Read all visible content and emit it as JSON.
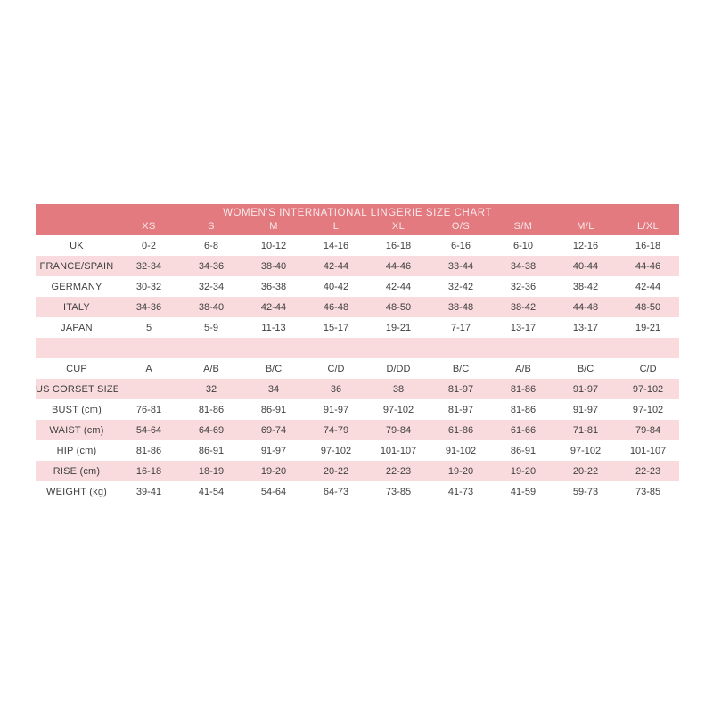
{
  "title": "WOMEN'S INTERNATIONAL LINGERIE SIZE CHART",
  "colors": {
    "banner": "#e27a80",
    "banner_text": "#f9e9e9",
    "row_pink": "#f9dbdd",
    "row_white": "#ffffff",
    "text": "#3f3f3f",
    "page_background": "#ffffff"
  },
  "chart_data": {
    "type": "table",
    "title": "WOMEN'S INTERNATIONAL LINGERIE SIZE CHART",
    "legend_position": "none",
    "grid": false,
    "columns": [
      "",
      "XS",
      "S",
      "M",
      "L",
      "XL",
      "O/S",
      "S/M",
      "M/L",
      "L/XL"
    ],
    "rows": [
      {
        "label": "UK",
        "spacer": false,
        "values": [
          "0-2",
          "6-8",
          "10-12",
          "14-16",
          "16-18",
          "6-16",
          "6-10",
          "12-16",
          "16-18"
        ]
      },
      {
        "label": "FRANCE/SPAIN",
        "spacer": false,
        "values": [
          "32-34",
          "34-36",
          "38-40",
          "42-44",
          "44-46",
          "33-44",
          "34-38",
          "40-44",
          "44-46"
        ]
      },
      {
        "label": "GERMANY",
        "spacer": false,
        "values": [
          "30-32",
          "32-34",
          "36-38",
          "40-42",
          "42-44",
          "32-42",
          "32-36",
          "38-42",
          "42-44"
        ]
      },
      {
        "label": "ITALY",
        "spacer": false,
        "values": [
          "34-36",
          "38-40",
          "42-44",
          "46-48",
          "48-50",
          "38-48",
          "38-42",
          "44-48",
          "48-50"
        ]
      },
      {
        "label": "JAPAN",
        "spacer": false,
        "values": [
          "5",
          "5-9",
          "11-13",
          "15-17",
          "19-21",
          "7-17",
          "13-17",
          "13-17",
          "19-21"
        ]
      },
      {
        "label": "",
        "spacer": true,
        "values": [
          "",
          "",
          "",
          "",
          "",
          "",
          "",
          "",
          ""
        ]
      },
      {
        "label": "CUP",
        "spacer": false,
        "values": [
          "A",
          "A/B",
          "B/C",
          "C/D",
          "D/DD",
          "B/C",
          "A/B",
          "B/C",
          "C/D"
        ]
      },
      {
        "label": "US CORSET SIZE",
        "spacer": false,
        "values": [
          "",
          "32",
          "34",
          "36",
          "38",
          "81-97",
          "81-86",
          "91-97",
          "97-102"
        ]
      },
      {
        "label": "BUST (cm)",
        "spacer": false,
        "values": [
          "76-81",
          "81-86",
          "86-91",
          "91-97",
          "97-102",
          "81-97",
          "81-86",
          "91-97",
          "97-102"
        ]
      },
      {
        "label": "WAIST (cm)",
        "spacer": false,
        "values": [
          "54-64",
          "64-69",
          "69-74",
          "74-79",
          "79-84",
          "61-86",
          "61-66",
          "71-81",
          "79-84"
        ]
      },
      {
        "label": "HIP (cm)",
        "spacer": false,
        "values": [
          "81-86",
          "86-91",
          "91-97",
          "97-102",
          "101-107",
          "91-102",
          "86-91",
          "97-102",
          "101-107"
        ]
      },
      {
        "label": "RISE (cm)",
        "spacer": false,
        "values": [
          "16-18",
          "18-19",
          "19-20",
          "20-22",
          "22-23",
          "19-20",
          "19-20",
          "20-22",
          "22-23"
        ]
      },
      {
        "label": "WEIGHT (kg)",
        "spacer": false,
        "values": [
          "39-41",
          "41-54",
          "54-64",
          "64-73",
          "73-85",
          "41-73",
          "41-59",
          "59-73",
          "73-85"
        ]
      }
    ]
  }
}
